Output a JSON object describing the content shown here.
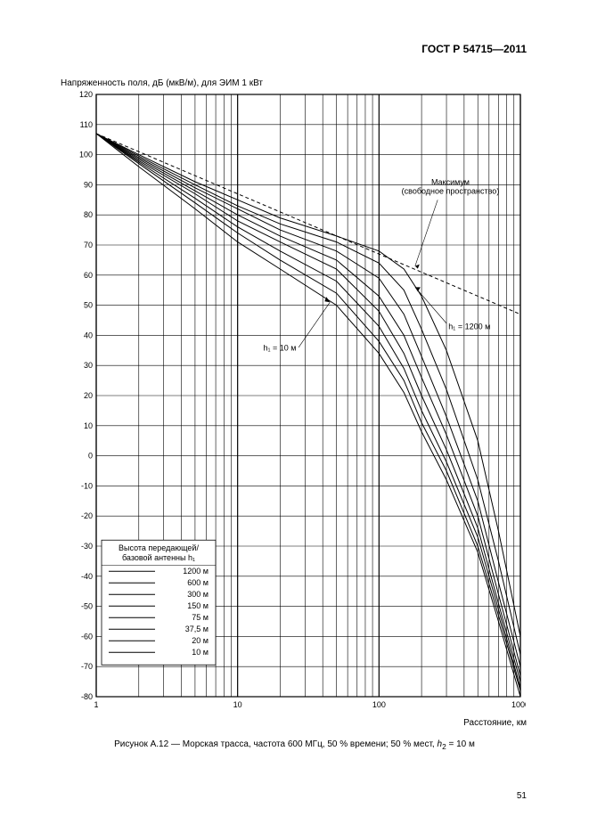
{
  "doc": {
    "standard": "ГОСТ Р 54715—2011",
    "page_number": "51"
  },
  "chart": {
    "type": "line",
    "y_title": "Напряженность поля, дБ (мкВ/м), для ЭИМ 1 кВт",
    "x_title": "Расстояние, км",
    "caption_prefix": "Рисунок А.12 — Морская трасса, частота 600 МГц, 50 % времени; 50 % мест, ",
    "caption_var": "h",
    "caption_sub": "2",
    "caption_suffix": " = 10 м",
    "xlim": [
      1,
      1000
    ],
    "ylim": [
      -80,
      120
    ],
    "x_scale": "log",
    "y_scale": "linear",
    "x_ticks": [
      1,
      10,
      100,
      1000
    ],
    "x_minor": [
      2,
      3,
      4,
      5,
      6,
      7,
      8,
      9,
      20,
      30,
      40,
      50,
      60,
      70,
      80,
      90,
      200,
      300,
      400,
      500,
      600,
      700,
      800,
      900
    ],
    "y_tick_step": 10,
    "background_color": "#ffffff",
    "axis_color": "#000000",
    "grid_color": "#000000",
    "grid_width": 0.6,
    "axis_width": 1.2,
    "font_size_tick": 9,
    "font_size_title": 10,
    "line_color": "#000000",
    "line_width": 1.0,
    "dashed_line_width": 1.0,
    "dashed_pattern": "4,3",
    "annotations": {
      "max_label_l1": "Максимум",
      "max_label_l2": "(свободное пространство)",
      "h1_1200": "h₁ = 1200 м",
      "h1_10": "h₁ = 10 м"
    },
    "legend": {
      "title_l1": "Высота передающей/",
      "title_l2": "базовой антенны h₁",
      "items": [
        {
          "label": "1200 м"
        },
        {
          "label": "600 м"
        },
        {
          "label": "300 м"
        },
        {
          "label": "150 м"
        },
        {
          "label": "75 м"
        },
        {
          "label": "37,5 м"
        },
        {
          "label": "20 м"
        },
        {
          "label": "10 м"
        }
      ]
    },
    "free_space": {
      "x": [
        1,
        10,
        100,
        1000
      ],
      "y": [
        107,
        87,
        67,
        47
      ]
    },
    "series": [
      {
        "name": "1200",
        "x": [
          1,
          2,
          5,
          10,
          20,
          50,
          100,
          150,
          200,
          300,
          500,
          700,
          1000
        ],
        "y": [
          107,
          100,
          91,
          85,
          79,
          73,
          68,
          62,
          53,
          35,
          5,
          -25,
          -60
        ]
      },
      {
        "name": "600",
        "x": [
          1,
          2,
          5,
          10,
          20,
          50,
          100,
          150,
          200,
          300,
          500,
          700,
          1000
        ],
        "y": [
          107,
          99.5,
          90,
          83,
          77,
          71,
          64,
          55,
          42,
          22,
          -8,
          -35,
          -66
        ]
      },
      {
        "name": "300",
        "x": [
          1,
          2,
          5,
          10,
          20,
          50,
          100,
          150,
          200,
          300,
          500,
          700,
          1000
        ],
        "y": [
          107,
          99,
          89,
          82,
          75,
          68,
          59,
          47,
          33,
          13,
          -15,
          -42,
          -70
        ]
      },
      {
        "name": "150",
        "x": [
          1,
          2,
          5,
          10,
          20,
          50,
          100,
          150,
          200,
          300,
          500,
          700,
          1000
        ],
        "y": [
          107,
          98.5,
          88,
          80,
          73,
          65,
          53,
          40,
          26,
          7,
          -20,
          -46,
          -73
        ]
      },
      {
        "name": "75",
        "x": [
          1,
          2,
          5,
          10,
          20,
          50,
          100,
          150,
          200,
          300,
          500,
          700,
          1000
        ],
        "y": [
          107,
          98,
          87,
          78,
          71,
          62,
          48,
          34,
          20,
          2,
          -24,
          -49,
          -75
        ]
      },
      {
        "name": "37.5",
        "x": [
          1,
          2,
          5,
          10,
          20,
          50,
          100,
          150,
          200,
          300,
          500,
          700,
          1000
        ],
        "y": [
          107,
          97.5,
          85.5,
          76,
          68,
          58,
          43,
          29,
          15,
          -2,
          -27,
          -51,
          -77
        ]
      },
      {
        "name": "20",
        "x": [
          1,
          2,
          5,
          10,
          20,
          50,
          100,
          150,
          200,
          300,
          500,
          700,
          1000
        ],
        "y": [
          107,
          97,
          84,
          74,
          65,
          54,
          38,
          25,
          11,
          -5,
          -30,
          -53,
          -78
        ]
      },
      {
        "name": "10",
        "x": [
          1,
          2,
          5,
          10,
          20,
          50,
          100,
          150,
          200,
          300,
          500,
          700,
          1000
        ],
        "y": [
          107,
          96,
          82,
          71,
          62,
          50,
          34,
          21,
          8,
          -8,
          -32,
          -55,
          -80
        ]
      }
    ]
  }
}
